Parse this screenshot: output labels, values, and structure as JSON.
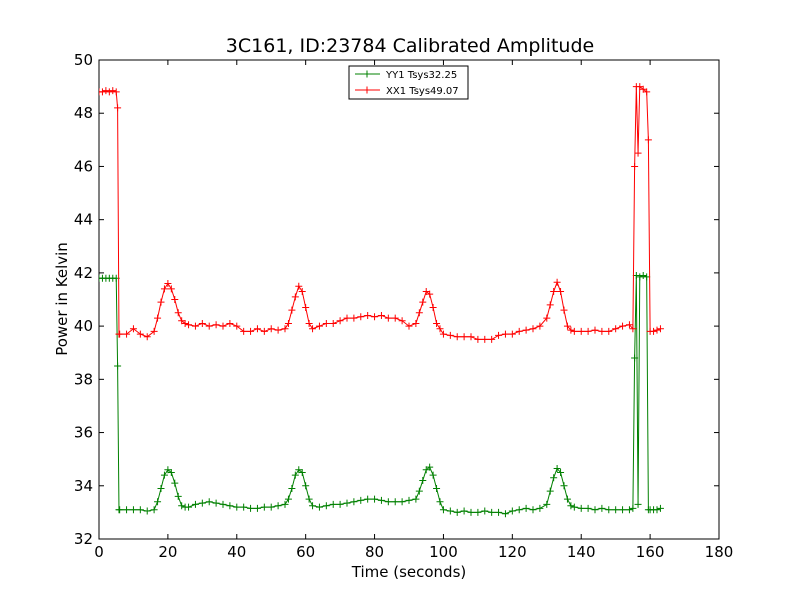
{
  "chart_data": {
    "type": "line",
    "title": "3C161, ID:23784 Calibrated Amplitude",
    "xlabel": "Time (seconds)",
    "ylabel": "Power in Kelvin",
    "xlim": [
      0,
      180
    ],
    "ylim": [
      32,
      50
    ],
    "xticks": [
      0,
      20,
      40,
      60,
      80,
      100,
      120,
      140,
      160,
      180
    ],
    "yticks": [
      32,
      34,
      36,
      38,
      40,
      42,
      44,
      46,
      48,
      50
    ],
    "grid": false,
    "legend_position": "top-center",
    "series": [
      {
        "name": "YY1 Tsys32.25",
        "color": "#008000",
        "marker": "+",
        "x": [
          0,
          1,
          2,
          3,
          4,
          5,
          5.4,
          5.8,
          6,
          8,
          10,
          12,
          14,
          16,
          17,
          18,
          19,
          20,
          21,
          22,
          23,
          24,
          25,
          26,
          28,
          30,
          32,
          34,
          36,
          38,
          40,
          42,
          44,
          46,
          48,
          50,
          52,
          54,
          55,
          56,
          57,
          58,
          59,
          60,
          61,
          62,
          64,
          66,
          68,
          70,
          72,
          74,
          76,
          78,
          80,
          82,
          84,
          86,
          88,
          90,
          92,
          93,
          94,
          95,
          96,
          97,
          98,
          99,
          100,
          102,
          104,
          106,
          108,
          110,
          112,
          114,
          116,
          118,
          120,
          122,
          124,
          126,
          128,
          130,
          131,
          132,
          133,
          134,
          135,
          136,
          137,
          138,
          140,
          142,
          144,
          146,
          148,
          150,
          152,
          154,
          155,
          155.5,
          156,
          156.5,
          157,
          158,
          159,
          159.5,
          160,
          161,
          162,
          163
        ],
        "y": [
          41.8,
          41.8,
          41.8,
          41.8,
          41.8,
          41.8,
          38.5,
          33.1,
          33.1,
          33.1,
          33.1,
          33.1,
          33.05,
          33.1,
          33.4,
          33.9,
          34.4,
          34.6,
          34.5,
          34.1,
          33.6,
          33.25,
          33.2,
          33.2,
          33.3,
          33.35,
          33.4,
          33.35,
          33.3,
          33.25,
          33.2,
          33.2,
          33.15,
          33.15,
          33.2,
          33.2,
          33.25,
          33.3,
          33.5,
          33.9,
          34.4,
          34.6,
          34.5,
          34.0,
          33.5,
          33.25,
          33.2,
          33.25,
          33.3,
          33.3,
          33.35,
          33.4,
          33.45,
          33.5,
          33.5,
          33.45,
          33.4,
          33.4,
          33.4,
          33.45,
          33.5,
          33.8,
          34.2,
          34.6,
          34.7,
          34.4,
          33.9,
          33.4,
          33.1,
          33.05,
          33.0,
          33.05,
          33.0,
          33.0,
          33.05,
          33.0,
          33.0,
          32.95,
          33.05,
          33.1,
          33.15,
          33.1,
          33.15,
          33.3,
          33.8,
          34.3,
          34.65,
          34.5,
          34.0,
          33.5,
          33.25,
          33.2,
          33.15,
          33.15,
          33.1,
          33.15,
          33.1,
          33.1,
          33.1,
          33.1,
          33.15,
          38.8,
          41.9,
          33.3,
          41.85,
          41.9,
          41.85,
          33.1,
          33.1,
          33.1,
          33.1,
          33.15
        ]
      },
      {
        "name": "XX1 Tsys49.07",
        "color": "#ff0000",
        "marker": "+",
        "x": [
          0,
          1,
          2,
          3,
          4,
          5,
          5.4,
          5.8,
          6,
          8,
          10,
          12,
          14,
          16,
          17,
          18,
          19,
          20,
          21,
          22,
          23,
          24,
          25,
          26,
          28,
          30,
          32,
          34,
          36,
          38,
          40,
          42,
          44,
          46,
          48,
          50,
          52,
          54,
          55,
          56,
          57,
          58,
          59,
          60,
          61,
          62,
          64,
          66,
          68,
          70,
          72,
          74,
          76,
          78,
          80,
          82,
          84,
          86,
          88,
          90,
          92,
          93,
          94,
          95,
          96,
          97,
          98,
          99,
          100,
          102,
          104,
          106,
          108,
          110,
          112,
          114,
          116,
          118,
          120,
          122,
          124,
          126,
          128,
          130,
          131,
          132,
          133,
          134,
          135,
          136,
          137,
          138,
          140,
          142,
          144,
          146,
          148,
          150,
          152,
          154,
          155,
          155.5,
          156,
          156.5,
          157,
          158,
          159,
          159.5,
          160,
          161,
          162,
          163
        ],
        "y": [
          48.8,
          48.8,
          48.85,
          48.8,
          48.85,
          48.8,
          48.2,
          39.7,
          39.7,
          39.7,
          39.9,
          39.7,
          39.6,
          39.8,
          40.3,
          40.9,
          41.4,
          41.6,
          41.4,
          41.0,
          40.5,
          40.2,
          40.1,
          40.05,
          40.0,
          40.1,
          40.0,
          40.05,
          40.0,
          40.1,
          40.0,
          39.8,
          39.8,
          39.9,
          39.8,
          39.9,
          39.85,
          39.9,
          40.1,
          40.6,
          41.1,
          41.5,
          41.3,
          40.7,
          40.1,
          39.9,
          40.0,
          40.1,
          40.1,
          40.2,
          40.3,
          40.3,
          40.35,
          40.4,
          40.35,
          40.4,
          40.3,
          40.3,
          40.2,
          40.0,
          40.1,
          40.5,
          40.9,
          41.3,
          41.2,
          40.7,
          40.1,
          39.9,
          39.7,
          39.65,
          39.6,
          39.6,
          39.6,
          39.5,
          39.5,
          39.5,
          39.65,
          39.7,
          39.7,
          39.8,
          39.85,
          39.9,
          40.0,
          40.3,
          40.8,
          41.3,
          41.65,
          41.3,
          40.6,
          40.0,
          39.85,
          39.8,
          39.8,
          39.8,
          39.85,
          39.8,
          39.8,
          39.9,
          40.0,
          40.05,
          39.9,
          46.0,
          49.0,
          46.5,
          49.0,
          48.9,
          48.8,
          47.0,
          39.8,
          39.8,
          39.85,
          39.9
        ]
      }
    ]
  }
}
